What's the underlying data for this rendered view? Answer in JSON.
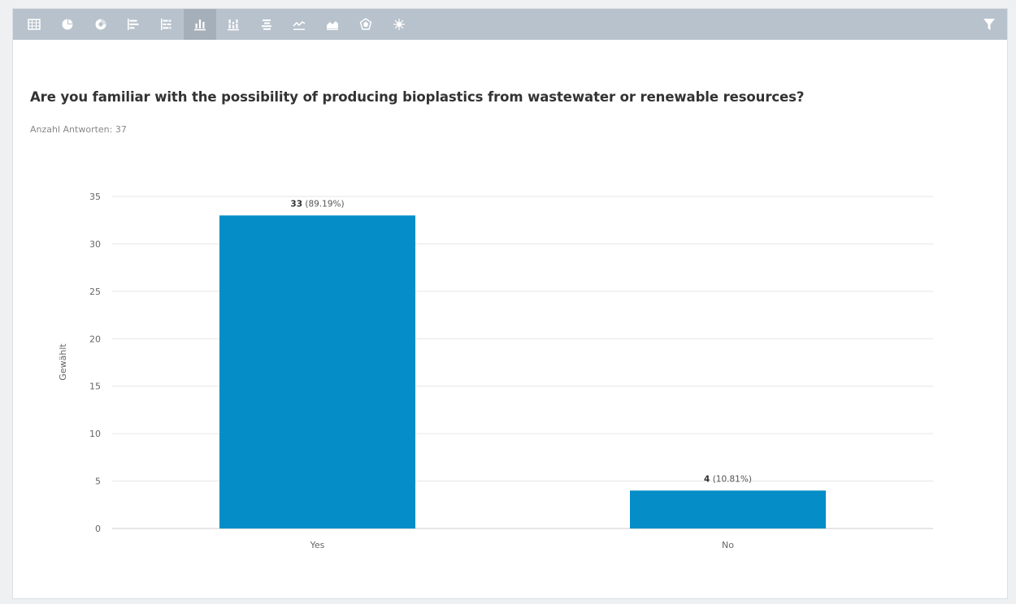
{
  "toolbar": {
    "views": [
      {
        "name": "table-view-icon",
        "active": false
      },
      {
        "name": "pie-chart-icon",
        "active": false
      },
      {
        "name": "donut-chart-icon",
        "active": false
      },
      {
        "name": "horizontal-bar-icon",
        "active": false
      },
      {
        "name": "horizontal-stacked-bar-icon",
        "active": false
      },
      {
        "name": "vertical-bar-icon",
        "active": true
      },
      {
        "name": "vertical-stacked-bar-icon",
        "active": false
      },
      {
        "name": "centered-bar-icon",
        "active": false
      },
      {
        "name": "line-chart-icon",
        "active": false
      },
      {
        "name": "area-chart-icon",
        "active": false
      },
      {
        "name": "polar-chart-icon",
        "active": false
      },
      {
        "name": "radar-chart-icon",
        "active": false
      }
    ],
    "filter_icon": "filter-icon",
    "colors": {
      "bar": "#b8c2cc",
      "active": "#a5afb9",
      "icon": "#ffffff"
    }
  },
  "question": {
    "title": "Are you familiar with the possibility of producing bioplastics from wastewater or renewable resources?",
    "subtitle": "Anzahl Antworten: 37"
  },
  "chart_data": {
    "type": "bar",
    "categories": [
      "Yes",
      "No"
    ],
    "values": [
      33,
      4
    ],
    "value_labels": [
      "33",
      "4"
    ],
    "percent_labels": [
      "(89.19%)",
      "(10.81%)"
    ],
    "xlabel": "",
    "ylabel": "Gewählt",
    "ylim": [
      0,
      35
    ],
    "yticks": [
      0,
      5,
      10,
      15,
      20,
      25,
      30,
      35
    ],
    "grid": true,
    "bar_color": "#058dc7"
  }
}
